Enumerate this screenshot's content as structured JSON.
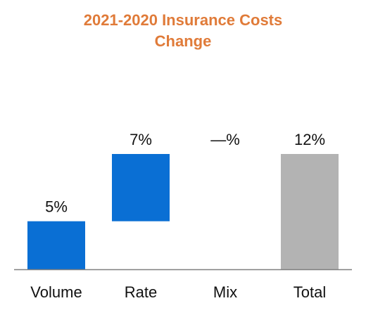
{
  "colors": {
    "title": "#E07B39",
    "increase": "#0A6FD4",
    "total": "#B3B3B3",
    "axis": "#7F7F7F",
    "text": "#111111"
  },
  "chart_data": {
    "type": "bar",
    "subtype": "waterfall",
    "title_lines": [
      "2021-2020 Insurance Costs",
      "Change"
    ],
    "categories": [
      "Volume",
      "Rate",
      "Mix",
      "Total"
    ],
    "values": [
      5,
      7,
      0,
      12
    ],
    "value_labels": [
      "5%",
      "7%",
      "—%",
      "12%"
    ],
    "is_total": [
      false,
      false,
      false,
      true
    ],
    "ylim": [
      0,
      12
    ],
    "grid": false,
    "legend": "none"
  }
}
